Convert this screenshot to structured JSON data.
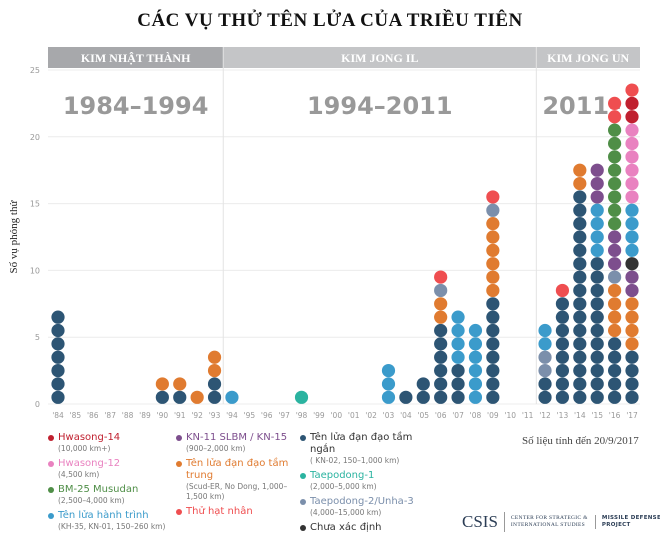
{
  "chart_data": {
    "type": "stacked-dot",
    "title": "CÁC VỤ THỬ TÊN LỬA CỦA TRIỀU TIÊN",
    "ylabel": "Số vụ phóng thử",
    "ylim": [
      0,
      25
    ],
    "yticks": [
      "0",
      "5",
      "10",
      "15",
      "20",
      "25"
    ],
    "grid": true,
    "eras": [
      {
        "leader": "KIM NHẬT THÀNH",
        "period": "1984–1994",
        "from": "'84",
        "to": "'93"
      },
      {
        "leader": "KIM JONG IL",
        "period": "1994–2011",
        "from": "'94",
        "to": "'11"
      },
      {
        "leader": "KIM JONG UN",
        "period": "2011–",
        "from": "'12",
        "to": "'17"
      }
    ],
    "categories": [
      "'84",
      "'85",
      "'86",
      "'87",
      "'88",
      "'89",
      "'90",
      "'91",
      "'92",
      "'93",
      "'94",
      "'95",
      "'96",
      "'97",
      "'98",
      "'99",
      "'00",
      "'01",
      "'02",
      "'03",
      "'04",
      "'05",
      "'06",
      "'07",
      "'08",
      "'09",
      "'10",
      "'11",
      "'12",
      "'13",
      "'14",
      "'15",
      "'16",
      "'17"
    ],
    "series": [
      {
        "name": "Tên lửa đạn đạo tầm ngắn",
        "color": "#2d5574",
        "values": [
          7,
          0,
          0,
          0,
          0,
          0,
          1,
          1,
          0,
          2,
          0,
          0,
          0,
          0,
          0,
          0,
          0,
          0,
          0,
          0,
          1,
          2,
          6,
          3,
          0,
          8,
          0,
          0,
          2,
          8,
          16,
          11,
          5,
          4
        ]
      },
      {
        "name": "Tên lửa hành trình",
        "color": "#3b9bcb",
        "values": [
          0,
          0,
          0,
          0,
          0,
          0,
          0,
          0,
          0,
          0,
          1,
          0,
          0,
          0,
          0,
          0,
          0,
          0,
          0,
          3,
          0,
          0,
          0,
          4,
          6,
          0,
          0,
          0,
          2,
          0,
          0,
          4,
          0,
          4
        ]
      },
      {
        "name": "Taepodong-1",
        "color": "#2bb3a0",
        "values": [
          0,
          0,
          0,
          0,
          0,
          0,
          0,
          0,
          0,
          0,
          0,
          0,
          0,
          0,
          1,
          0,
          0,
          0,
          0,
          0,
          0,
          0,
          0,
          0,
          0,
          0,
          0,
          0,
          0,
          0,
          0,
          0,
          0,
          0
        ]
      },
      {
        "name": "Tên lửa đạn đạo tầm trung",
        "color": "#e07b30",
        "values": [
          0,
          0,
          0,
          0,
          0,
          0,
          1,
          1,
          1,
          2,
          0,
          0,
          0,
          0,
          0,
          0,
          0,
          0,
          0,
          0,
          0,
          0,
          2,
          0,
          0,
          6,
          0,
          0,
          0,
          0,
          2,
          0,
          4,
          4
        ]
      },
      {
        "name": "Taepodong-2/Unha-3",
        "color": "#7b8fab",
        "values": [
          0,
          0,
          0,
          0,
          0,
          0,
          0,
          0,
          0,
          0,
          0,
          0,
          0,
          0,
          0,
          0,
          0,
          0,
          0,
          0,
          0,
          0,
          1,
          0,
          0,
          1,
          0,
          0,
          2,
          0,
          0,
          0,
          1,
          0
        ]
      },
      {
        "name": "KN-11 SLBM / KN-15",
        "color": "#7d4e8d",
        "values": [
          0,
          0,
          0,
          0,
          0,
          0,
          0,
          0,
          0,
          0,
          0,
          0,
          0,
          0,
          0,
          0,
          0,
          0,
          0,
          0,
          0,
          0,
          0,
          0,
          0,
          0,
          0,
          0,
          0,
          0,
          0,
          3,
          3,
          2
        ]
      },
      {
        "name": "Chưa xác định",
        "color": "#333333",
        "values": [
          0,
          0,
          0,
          0,
          0,
          0,
          0,
          0,
          0,
          0,
          0,
          0,
          0,
          0,
          0,
          0,
          0,
          0,
          0,
          0,
          0,
          0,
          0,
          0,
          0,
          0,
          0,
          0,
          0,
          0,
          0,
          0,
          0,
          1
        ]
      },
      {
        "name": "BM-25 Musudan",
        "color": "#4f8e47",
        "values": [
          0,
          0,
          0,
          0,
          0,
          0,
          0,
          0,
          0,
          0,
          0,
          0,
          0,
          0,
          0,
          0,
          0,
          0,
          0,
          0,
          0,
          0,
          0,
          0,
          0,
          0,
          0,
          0,
          0,
          0,
          0,
          0,
          8,
          0
        ]
      },
      {
        "name": "Hwasong-12",
        "color": "#e982c0",
        "values": [
          0,
          0,
          0,
          0,
          0,
          0,
          0,
          0,
          0,
          0,
          0,
          0,
          0,
          0,
          0,
          0,
          0,
          0,
          0,
          0,
          0,
          0,
          0,
          0,
          0,
          0,
          0,
          0,
          0,
          0,
          0,
          0,
          0,
          6
        ]
      },
      {
        "name": "Hwasong-14",
        "color": "#c0202f",
        "values": [
          0,
          0,
          0,
          0,
          0,
          0,
          0,
          0,
          0,
          0,
          0,
          0,
          0,
          0,
          0,
          0,
          0,
          0,
          0,
          0,
          0,
          0,
          0,
          0,
          0,
          0,
          0,
          0,
          0,
          0,
          0,
          0,
          0,
          2
        ]
      },
      {
        "name": "Thử hạt nhân",
        "color": "#ef4e50",
        "values": [
          0,
          0,
          0,
          0,
          0,
          0,
          0,
          0,
          0,
          0,
          0,
          0,
          0,
          0,
          0,
          0,
          0,
          0,
          0,
          0,
          0,
          0,
          1,
          0,
          0,
          1,
          0,
          0,
          0,
          1,
          0,
          0,
          2,
          1
        ]
      }
    ],
    "stack_order_by_year": {
      "'12": [
        "Tên lửa đạn đạo tầm ngắn",
        "Taepodong-2/Unha-3",
        "Tên lửa hành trình"
      ],
      "'17": [
        "Tên lửa đạn đạo tầm ngắn",
        "Tên lửa đạn đạo tầm trung",
        "KN-11 SLBM / KN-15",
        "Chưa xác định",
        "Tên lửa hành trình",
        "Hwasong-12",
        "Hwasong-14",
        "Thử hạt nhân"
      ]
    }
  },
  "legend": [
    [
      {
        "label": "Hwasong-14",
        "sub": "(10,000 km+)",
        "color": "#c0202f"
      },
      {
        "label": "Hwasong-12",
        "sub": "(4,500 km)",
        "color": "#e982c0"
      },
      {
        "label": "BM-25 Musudan",
        "sub": "(2,500–4,000 km)",
        "color": "#4f8e47"
      },
      {
        "label": "Tên lửa hành trình",
        "sub": "(KH-35, KN-01, 150–260 km)",
        "color": "#3b9bcb"
      }
    ],
    [
      {
        "label": "KN-11 SLBM / KN-15",
        "sub": "(900–2,000 km)",
        "color": "#7d4e8d"
      },
      {
        "label": "Tên lửa đạn đạo tầm trung",
        "sub": "(Scud-ER, No Dong, 1,000–1,500 km)",
        "color": "#e07b30"
      },
      {
        "label": "Thử hạt nhân",
        "sub": "",
        "color": "#ef4e50"
      }
    ],
    [
      {
        "label": "Tên lửa đạn đạo tầm ngắn",
        "sub": "( KN-02, 150–1,000 km)",
        "color": "#2d5574"
      },
      {
        "label": "Taepodong-1",
        "sub": "(2,000–5,000 km)",
        "color": "#2bb3a0"
      },
      {
        "label": "Taepodong-2/Unha-3",
        "sub": "(4,000–15,000 km)",
        "color": "#7b8fab"
      },
      {
        "label": "Chưa xác định",
        "sub": "",
        "color": "#333333"
      }
    ]
  ],
  "footer": {
    "as_of": "Số liệu tính đến 20/9/2017",
    "logo_csis": "CSIS",
    "logo_org": "CENTER FOR STRATEGIC & INTERNATIONAL STUDIES",
    "logo_project": "MISSILE DEFENSE PROJECT"
  }
}
